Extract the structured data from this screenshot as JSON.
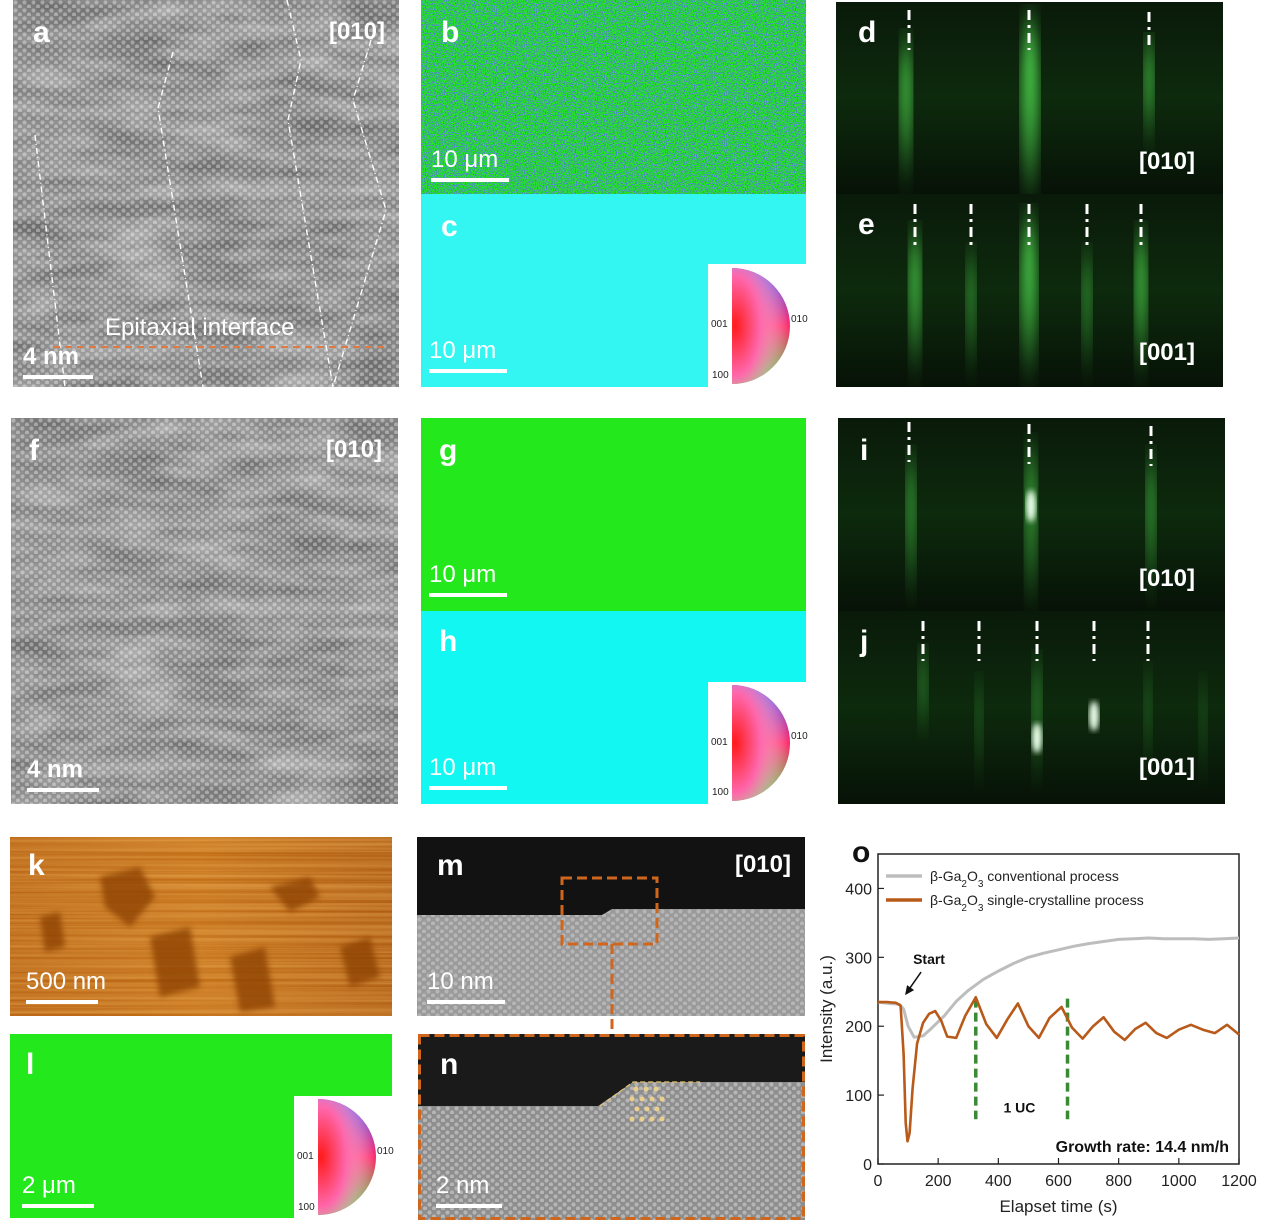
{
  "colors": {
    "stem_gray": "#7a7a7a",
    "ebsd_green_010": "#22e81c",
    "ebsd_cyan_001": "#33f5f2",
    "ebsd_noise_blue": "#1434b4",
    "rheed_green": "#5cff5c",
    "afm_orange": "#b7620f",
    "interface_line": "#e0793a",
    "zoom_box": "#d0651e",
    "series_conventional": "#bdbdbd",
    "series_single": "#b85a1a",
    "marker_green": "#3a8a35"
  },
  "panels": {
    "a": {
      "label": "a",
      "zone": "[010]",
      "scale": "4 nm",
      "annotation": "Epitaxial interface"
    },
    "b": {
      "label": "b",
      "scale": "10 μm"
    },
    "c": {
      "label": "c",
      "scale": "10 μm"
    },
    "d": {
      "label": "d",
      "zone": "[010]"
    },
    "e": {
      "label": "e",
      "zone": "[001]"
    },
    "f": {
      "label": "f",
      "zone": "[010]",
      "scale": "4 nm"
    },
    "g": {
      "label": "g",
      "scale": "10 μm"
    },
    "h": {
      "label": "h",
      "scale": "10 μm"
    },
    "i": {
      "label": "i",
      "zone": "[010]"
    },
    "j": {
      "label": "j",
      "zone": "[001]"
    },
    "k": {
      "label": "k",
      "scale": "500 nm"
    },
    "l": {
      "label": "l",
      "scale": "2 μm"
    },
    "m": {
      "label": "m",
      "zone": "[010]",
      "scale": "10 nm"
    },
    "n": {
      "label": "n",
      "scale": "2 nm"
    },
    "o": {
      "label": "o"
    }
  },
  "ipf_key": {
    "top": "010",
    "left": "001",
    "bottom": "100"
  },
  "chart_data": {
    "type": "line",
    "xlabel": "Elapset time (s)",
    "ylabel": "Intensity (a.u.)",
    "xlim": [
      0,
      1200
    ],
    "ylim": [
      0,
      450
    ],
    "xticks": [
      "0",
      "200",
      "400",
      "600",
      "800",
      "1000",
      "1200"
    ],
    "yticks": [
      "0",
      "100",
      "200",
      "300",
      "400"
    ],
    "legend_position": "top-left",
    "series": [
      {
        "name": "β-Ga2O3 conventional process",
        "name_parts": [
          "β-Ga",
          "2",
          "O",
          "3",
          " conventional process"
        ],
        "color": "#bdbdbd",
        "x": [
          0,
          40,
          70,
          85,
          100,
          120,
          150,
          180,
          220,
          260,
          300,
          350,
          400,
          450,
          500,
          550,
          600,
          650,
          700,
          750,
          800,
          850,
          900,
          950,
          1000,
          1050,
          1100,
          1150,
          1200
        ],
        "y": [
          235,
          233,
          232,
          225,
          200,
          184,
          186,
          198,
          215,
          236,
          252,
          268,
          280,
          291,
          300,
          306,
          311,
          316,
          320,
          323,
          326,
          327,
          328,
          327,
          327,
          327,
          326,
          327,
          328
        ]
      },
      {
        "name": "β-Ga2O3 single-crystalline process",
        "name_parts": [
          "β-Ga",
          "2",
          "O",
          "3",
          " single-crystalline process"
        ],
        "color": "#b85a1a",
        "x": [
          0,
          30,
          60,
          75,
          85,
          92,
          98,
          105,
          115,
          130,
          150,
          170,
          190,
          210,
          230,
          260,
          290,
          325,
          360,
          395,
          430,
          465,
          500,
          535,
          570,
          610,
          645,
          680,
          715,
          750,
          785,
          820,
          855,
          890,
          925,
          960,
          1000,
          1040,
          1080,
          1120,
          1160,
          1200
        ],
        "y": [
          235,
          235,
          234,
          230,
          160,
          60,
          33,
          45,
          110,
          175,
          205,
          218,
          222,
          208,
          185,
          183,
          215,
          242,
          203,
          183,
          210,
          233,
          200,
          183,
          212,
          228,
          198,
          182,
          200,
          213,
          192,
          180,
          196,
          205,
          190,
          183,
          195,
          202,
          195,
          190,
          202,
          188
        ]
      }
    ],
    "annotations": [
      {
        "text": "Start",
        "x": 90,
        "y": 235
      },
      {
        "text": "1 UC",
        "x": 470,
        "y": 75
      },
      {
        "text": "Growth rate: 14.4 nm/h"
      }
    ],
    "markers_x": [
      325,
      630
    ]
  }
}
